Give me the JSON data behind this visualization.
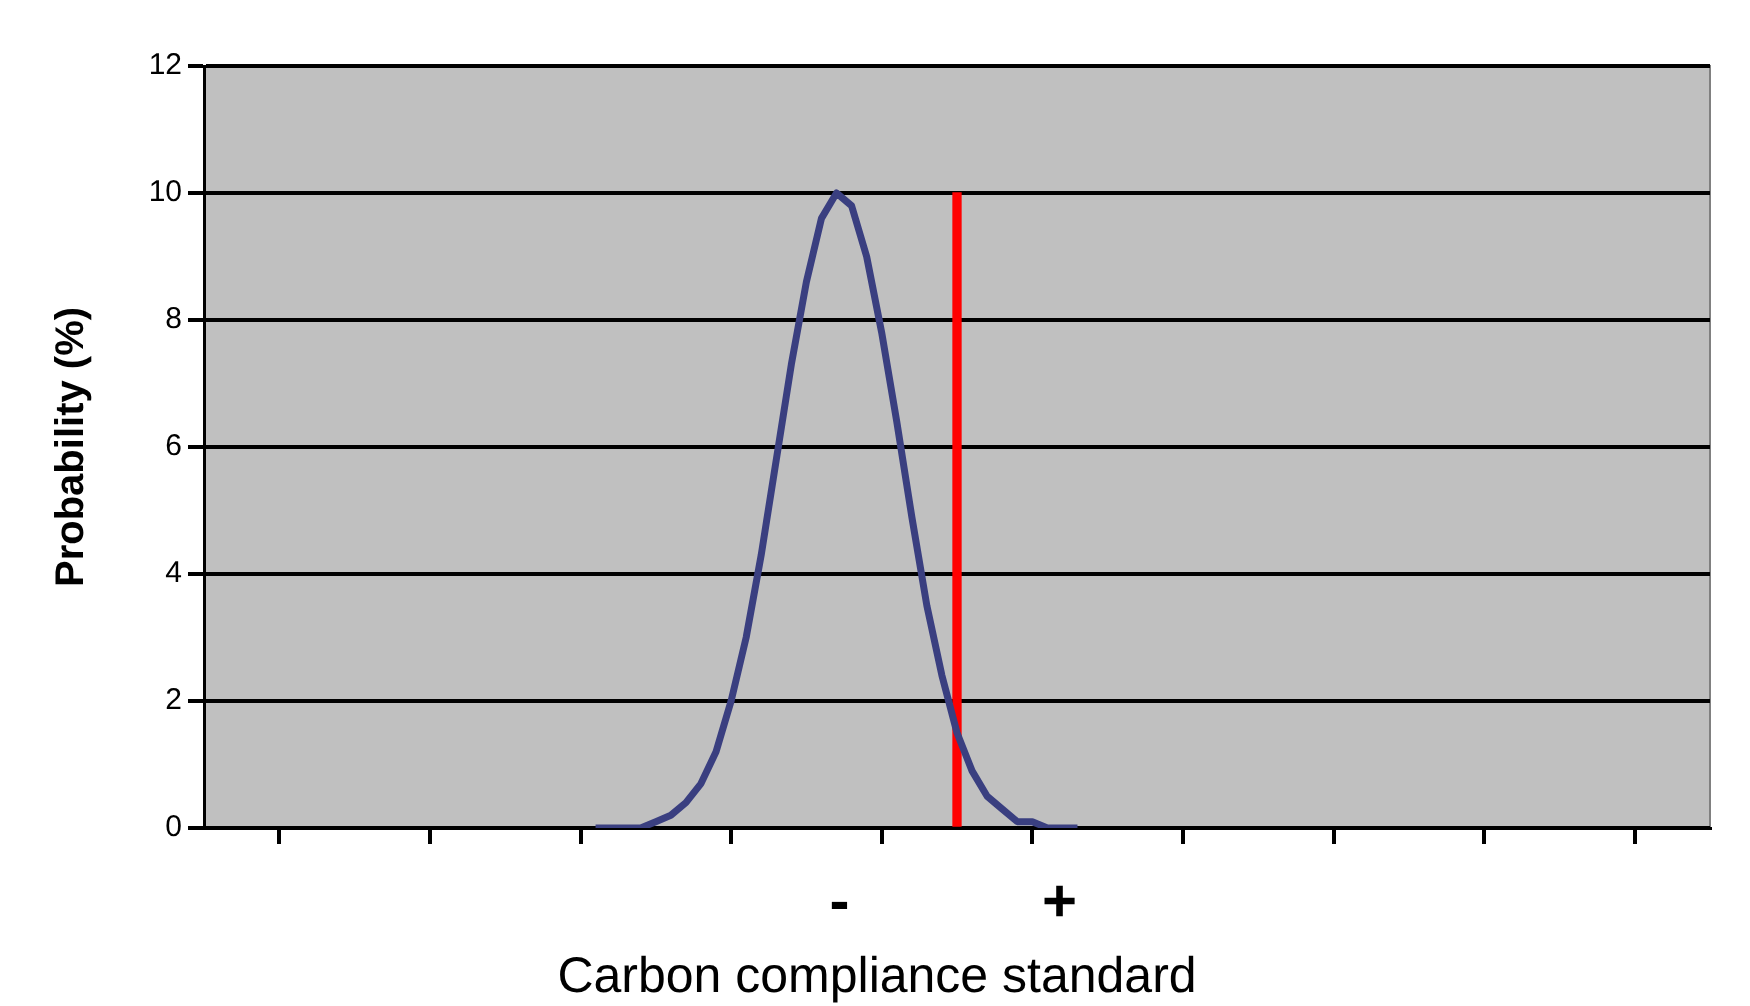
{
  "chart_data": {
    "type": "line",
    "xlabel": "Carbon compliance standard",
    "ylabel": "Probability (%)",
    "categories": [
      null,
      null,
      null,
      null,
      null,
      null,
      null,
      null,
      null,
      null,
      null,
      null,
      null,
      null,
      null,
      null,
      null,
      null,
      null,
      null,
      null,
      null,
      null,
      null,
      null,
      null,
      null,
      null,
      null,
      null,
      null,
      null,
      null,
      null,
      null,
      null,
      null,
      null,
      null,
      null,
      null,
      null,
      null,
      null,
      null,
      null,
      null,
      null,
      null,
      null,
      null,
      null,
      null,
      null,
      null,
      null,
      null,
      null,
      null,
      null,
      null,
      null,
      null,
      null,
      null,
      null,
      null,
      null,
      null,
      null,
      null,
      null,
      null,
      null,
      null,
      null,
      null,
      null,
      null,
      null,
      null,
      null,
      null,
      null,
      null,
      null,
      null,
      null,
      null,
      null,
      null,
      null,
      null,
      null,
      null,
      null,
      null,
      null,
      null,
      null,
      null
    ],
    "ylim": [
      0,
      12
    ],
    "yticks": [
      0,
      2,
      4,
      6,
      8,
      10,
      12
    ],
    "grid": "y",
    "legend": false,
    "tick_labels": "y",
    "marker": "none",
    "series": [
      {
        "color": "#3a3f80",
        "values": [
          null,
          null,
          null,
          null,
          null,
          null,
          null,
          null,
          null,
          null,
          null,
          null,
          null,
          null,
          null,
          null,
          null,
          null,
          null,
          null,
          null,
          null,
          null,
          null,
          null,
          null,
          0,
          0,
          0,
          0,
          0.1,
          0.2,
          0.4,
          0.7,
          1.2,
          2,
          3,
          4.3,
          5.8,
          7.3,
          8.6,
          9.6,
          10,
          9.8,
          9,
          7.8,
          6.4,
          4.9,
          3.5,
          2.4,
          1.5,
          0.9,
          0.5,
          0.3,
          0.1,
          0.1,
          0,
          0,
          0,
          null,
          null,
          null,
          null,
          null,
          null,
          null,
          null,
          null,
          null,
          null,
          null,
          null,
          null,
          null,
          null,
          null,
          null,
          null,
          null,
          null,
          null,
          null,
          null,
          null,
          null,
          null,
          null,
          null,
          null,
          null,
          null,
          null,
          null,
          null,
          null,
          null,
          null,
          null,
          null,
          null,
          null
        ]
      },
      {
        "type": "bar",
        "color": "#ff0000",
        "values": [
          null,
          null,
          null,
          null,
          null,
          null,
          null,
          null,
          null,
          null,
          null,
          null,
          null,
          null,
          null,
          null,
          null,
          null,
          null,
          null,
          null,
          null,
          null,
          null,
          null,
          null,
          null,
          null,
          null,
          null,
          null,
          null,
          null,
          null,
          null,
          null,
          null,
          null,
          null,
          null,
          null,
          null,
          null,
          null,
          null,
          null,
          null,
          null,
          null,
          null,
          10,
          null,
          null,
          null,
          null,
          null,
          null,
          null,
          null,
          null,
          null,
          null,
          null,
          null,
          null,
          null,
          null,
          null,
          null,
          null,
          null,
          null,
          null,
          null,
          null,
          null,
          null,
          null,
          null,
          null,
          null,
          null,
          null,
          null,
          null,
          null,
          null,
          null,
          null,
          null,
          null,
          null,
          null,
          null,
          null,
          null,
          null,
          null,
          null,
          null,
          null
        ]
      }
    ],
    "annotations": [
      "-",
      "+"
    ]
  }
}
